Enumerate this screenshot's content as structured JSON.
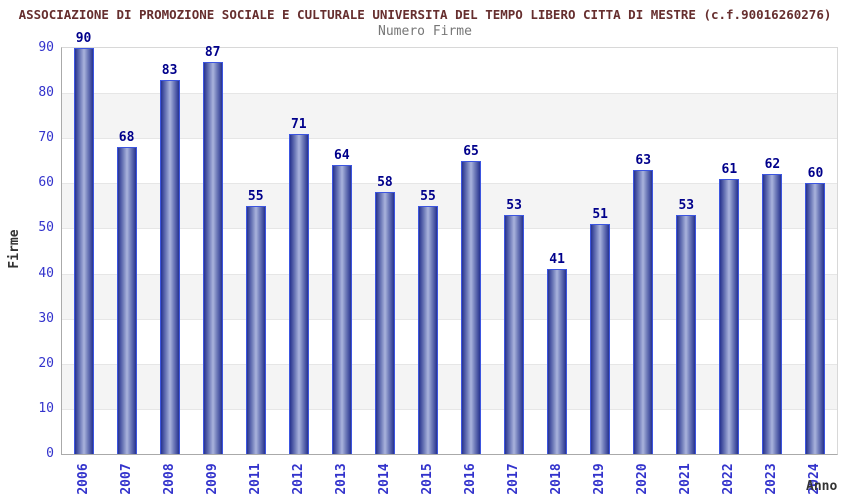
{
  "chart_data": {
    "type": "bar",
    "title": "ASSOCIAZIONE DI PROMOZIONE SOCIALE E CULTURALE UNIVERSITA DEL TEMPO LIBERO CITTA DI MESTRE (c.f.90016260276)",
    "subtitle": "Numero Firme",
    "categories": [
      "2006",
      "2007",
      "2008",
      "2009",
      "2011",
      "2012",
      "2013",
      "2014",
      "2015",
      "2016",
      "2017",
      "2018",
      "2019",
      "2020",
      "2021",
      "2022",
      "2023",
      "2024"
    ],
    "values": [
      90,
      68,
      83,
      87,
      55,
      71,
      64,
      58,
      55,
      65,
      53,
      41,
      51,
      63,
      53,
      61,
      62,
      60
    ],
    "xlabel": "Anno",
    "ylabel": "Firme",
    "ylim": [
      0,
      90
    ],
    "ytick_step": 10,
    "ytick_labels": [
      "0",
      "10",
      "20",
      "30",
      "40",
      "50",
      "60",
      "70",
      "80",
      "90"
    ],
    "grid": "alternating-horizontal-bands",
    "legend": "none",
    "colors": {
      "title_text": "#662e2e",
      "subtitle_text": "#777777",
      "axis_tick_text": "#3333cc",
      "bar_value_text": "#00008b",
      "axis_title_text": "#333333",
      "bar_edge": "#3c55e0",
      "bar_gradient_dark": "#27338f",
      "bar_gradient_light": "#aab3dd",
      "band_fill": "#f4f4f4",
      "background": "#ffffff"
    }
  }
}
